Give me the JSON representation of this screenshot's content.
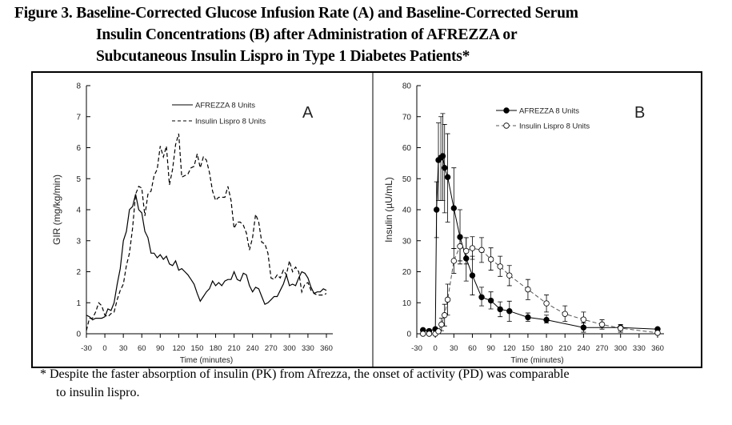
{
  "title": {
    "line1": "Figure 3.  Baseline-Corrected Glucose Infusion Rate (A) and Baseline-Corrected Serum",
    "line2": "Insulin Concentrations (B) after Administration of AFREZZA or",
    "line3": "Subcutaneous Insulin Lispro in Type 1 Diabetes Patients*"
  },
  "footnote": {
    "line1": "* Despite the faster absorption of insulin (PK) from Afrezza, the onset of activity (PD)  was comparable",
    "line2": "to insulin lispro."
  },
  "chart_data": [
    {
      "type": "line",
      "panel_label": "A",
      "xlabel": "Time (minutes)",
      "ylabel": "GIR (mg/kg/min)",
      "xlim": [
        -30,
        360
      ],
      "ylim": [
        0,
        8
      ],
      "xticks": [
        -30,
        0,
        30,
        60,
        90,
        120,
        150,
        180,
        210,
        240,
        270,
        300,
        330,
        360
      ],
      "yticks": [
        0,
        1,
        2,
        3,
        4,
        5,
        6,
        7,
        8
      ],
      "grid": false,
      "legend_position": "top-right",
      "x": [
        -30,
        -25,
        -20,
        -15,
        -10,
        -5,
        0,
        5,
        10,
        15,
        20,
        25,
        30,
        35,
        40,
        45,
        50,
        55,
        60,
        65,
        70,
        75,
        80,
        85,
        90,
        95,
        100,
        105,
        110,
        115,
        120,
        125,
        130,
        135,
        140,
        145,
        150,
        155,
        160,
        165,
        170,
        175,
        180,
        185,
        190,
        195,
        200,
        205,
        210,
        215,
        220,
        225,
        230,
        235,
        240,
        245,
        250,
        255,
        260,
        265,
        270,
        275,
        280,
        285,
        290,
        295,
        300,
        305,
        310,
        315,
        320,
        325,
        330,
        335,
        340,
        345,
        350,
        355,
        360
      ],
      "series": [
        {
          "name": "AFREZZA 8 Units",
          "style": "solid",
          "color": "#000000",
          "values": [
            0.6,
            0.55,
            0.45,
            0.5,
            0.5,
            0.5,
            0.55,
            0.8,
            0.75,
            1.0,
            1.6,
            2.1,
            3.0,
            3.3,
            4.0,
            4.1,
            4.5,
            4.0,
            3.9,
            3.3,
            3.1,
            2.6,
            2.6,
            2.45,
            2.55,
            2.4,
            2.5,
            2.25,
            2.2,
            2.35,
            2.05,
            2.1,
            2.0,
            1.9,
            1.75,
            1.6,
            1.3,
            1.05,
            1.2,
            1.35,
            1.45,
            1.7,
            1.55,
            1.65,
            1.55,
            1.7,
            1.75,
            1.75,
            2.0,
            1.75,
            1.7,
            1.95,
            1.9,
            1.55,
            1.35,
            1.5,
            1.45,
            1.2,
            0.95,
            1.0,
            1.1,
            1.2,
            1.2,
            1.4,
            1.6,
            1.9,
            1.55,
            1.6,
            1.55,
            1.8,
            2.0,
            1.95,
            1.8,
            1.5,
            1.3,
            1.35,
            1.35,
            1.45,
            1.4
          ]
        },
        {
          "name": "Insulin Lispro 8 Units",
          "style": "dashed",
          "color": "#000000",
          "values": [
            0.1,
            0.5,
            0.5,
            0.7,
            1.0,
            0.9,
            0.6,
            0.55,
            0.65,
            0.7,
            1.1,
            1.4,
            1.6,
            2.2,
            2.6,
            3.4,
            4.5,
            4.75,
            4.7,
            3.8,
            4.5,
            4.6,
            5.1,
            5.3,
            6.05,
            5.7,
            6.05,
            4.8,
            5.3,
            6.1,
            6.45,
            5.05,
            5.1,
            5.15,
            5.35,
            5.4,
            5.8,
            5.35,
            5.7,
            5.6,
            5.2,
            4.6,
            4.3,
            4.4,
            4.4,
            4.4,
            4.75,
            4.3,
            3.4,
            3.6,
            3.6,
            3.5,
            3.25,
            2.7,
            3.1,
            3.85,
            3.6,
            2.95,
            2.9,
            2.6,
            1.8,
            1.75,
            1.9,
            1.8,
            2.05,
            1.9,
            2.35,
            2.0,
            2.15,
            2.0,
            1.35,
            1.6,
            1.65,
            1.4,
            1.3,
            1.25,
            1.25,
            1.25,
            1.3
          ]
        }
      ]
    },
    {
      "type": "line",
      "panel_label": "B",
      "xlabel": "Time (minutes)",
      "ylabel": "Insulin (µU/mL)",
      "xlim": [
        -30,
        360
      ],
      "ylim": [
        0,
        80
      ],
      "xticks": [
        -30,
        0,
        30,
        60,
        90,
        120,
        150,
        180,
        210,
        240,
        270,
        300,
        330,
        360
      ],
      "yticks": [
        0,
        10,
        20,
        30,
        40,
        50,
        60,
        70,
        80
      ],
      "grid": false,
      "legend_position": "top-right",
      "series": [
        {
          "name": "AFREZZA 8 Units",
          "style": "solid",
          "marker": "filled-circle",
          "color": "#000000",
          "x": [
            -20,
            -10,
            0,
            2,
            5,
            9,
            12,
            15,
            20,
            30,
            40,
            50,
            60,
            75,
            90,
            105,
            120,
            150,
            180,
            240,
            300,
            360
          ],
          "values": [
            1.2,
            0.9,
            1.5,
            40,
            56,
            56.8,
            57.3,
            53.5,
            50.5,
            40.5,
            31.2,
            24.3,
            18.8,
            11.8,
            10.7,
            7.9,
            7.3,
            5.3,
            4.5,
            2.0,
            2.0,
            1.5
          ],
          "error_low": [
            null,
            null,
            null,
            31,
            43,
            43,
            43,
            39,
            36,
            27.5,
            22.5,
            17,
            12.5,
            9,
            8,
            5.5,
            4,
            4,
            3.5,
            0.5,
            1,
            null
          ],
          "error_high": [
            null,
            null,
            null,
            49,
            68,
            70,
            71,
            67.5,
            64.5,
            53.5,
            40,
            31,
            25,
            15,
            13.5,
            10.3,
            10.5,
            6.7,
            6,
            3.5,
            3,
            null
          ]
        },
        {
          "name": "Insulin Lispro 8 Units",
          "style": "dashed",
          "marker": "open-circle",
          "color": "#555555",
          "x": [
            -20,
            -10,
            0,
            5,
            10,
            15,
            20,
            30,
            40,
            50,
            60,
            75,
            90,
            105,
            120,
            150,
            180,
            210,
            240,
            270,
            300,
            360
          ],
          "values": [
            0,
            0,
            0,
            0.8,
            3.0,
            6.0,
            11.0,
            23.5,
            28.2,
            26.7,
            27.6,
            27.0,
            24.0,
            21.7,
            18.8,
            14.3,
            9.8,
            6.4,
            4.6,
            3.0,
            1.8,
            0.3
          ],
          "error_low": [
            null,
            null,
            null,
            null,
            1,
            2.5,
            6,
            19.5,
            23.5,
            22.5,
            24,
            23,
            20.5,
            18.5,
            15.5,
            11,
            7,
            4,
            2.5,
            1.5,
            0.5,
            null
          ],
          "error_high": [
            null,
            null,
            null,
            null,
            5,
            9.5,
            16,
            27.5,
            31.5,
            31,
            31.3,
            31,
            27.7,
            25,
            22,
            17.5,
            12.5,
            9,
            7,
            4.5,
            3,
            null
          ]
        }
      ]
    }
  ]
}
